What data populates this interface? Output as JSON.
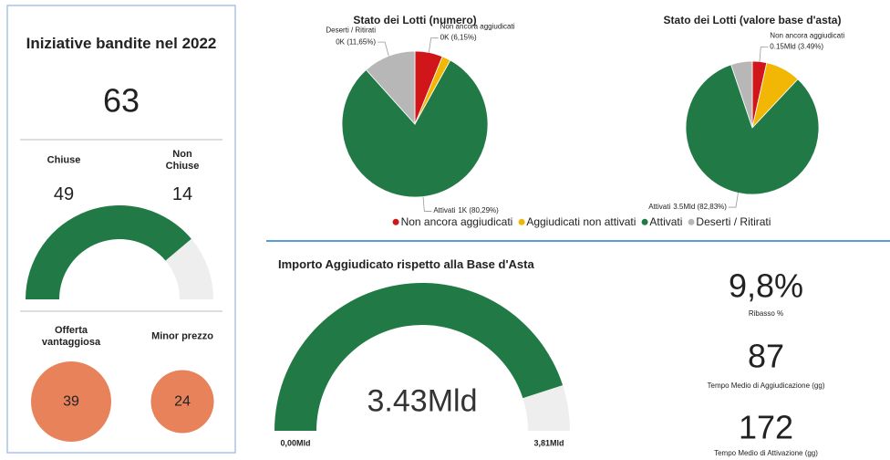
{
  "header": {
    "title": "Iniziative bandite nel 2022",
    "total": 63
  },
  "kpis": [
    {
      "value": "9,8%",
      "label": "Ribasso %"
    },
    {
      "value": 87,
      "label": "Tempo Medio di Aggiudicazione (gg)"
    },
    {
      "value": 172,
      "label": "Tempo Medio di Attivazione (gg)"
    }
  ],
  "chart_data": [
    {
      "type": "gauge",
      "categories": [
        "Chiuse",
        "Non Chiuse"
      ],
      "values": [
        49,
        14
      ],
      "colors": [
        "#217a45",
        "#eeeeee"
      ]
    },
    {
      "type": "bubble",
      "categories": [
        "Offerta vantaggiosa",
        "Minor prezzo"
      ],
      "values": [
        39,
        24
      ],
      "color": "#e8825a"
    },
    {
      "type": "pie",
      "title": "Stato dei Lotti (numero)",
      "categories": [
        "Non ancora aggiudicati",
        "Aggiudicati non attivati",
        "Attivati",
        "Deserti / Ritirati"
      ],
      "values": [
        6.15,
        1.91,
        80.29,
        11.65
      ],
      "value_labels": [
        "0K (6,15%)",
        null,
        "1K (80,29%)",
        "0K (11,65%)"
      ],
      "colors": [
        "#d0161b",
        "#f2b705",
        "#217a45",
        "#b7b7b7"
      ],
      "legend": "bottom"
    },
    {
      "type": "pie",
      "title": "Stato dei Lotti (valore base d'asta)",
      "categories": [
        "Non ancora aggiudicati",
        "Aggiudicati non attivati",
        "Attivati",
        "Deserti / Ritirati"
      ],
      "values": [
        3.49,
        8.5,
        82.83,
        5.18
      ],
      "value_labels": [
        "0.15Mld (3.49%)",
        null,
        "3.5Mld (82,83%)",
        null
      ],
      "colors": [
        "#d0161b",
        "#f2b705",
        "#217a45",
        "#b7b7b7"
      ]
    },
    {
      "type": "gauge",
      "title": "Importo Aggiudicato rispetto alla Base d'Asta",
      "value": 3.43,
      "value_label": "3.43Mld",
      "ylim": [
        0,
        3.81
      ],
      "yticks": [
        {
          "value": 0,
          "label": "0,00Mld"
        },
        {
          "value": 3.81,
          "label": "3,81Mld"
        }
      ],
      "colors": [
        "#217a45",
        "#eeeeee"
      ]
    }
  ]
}
